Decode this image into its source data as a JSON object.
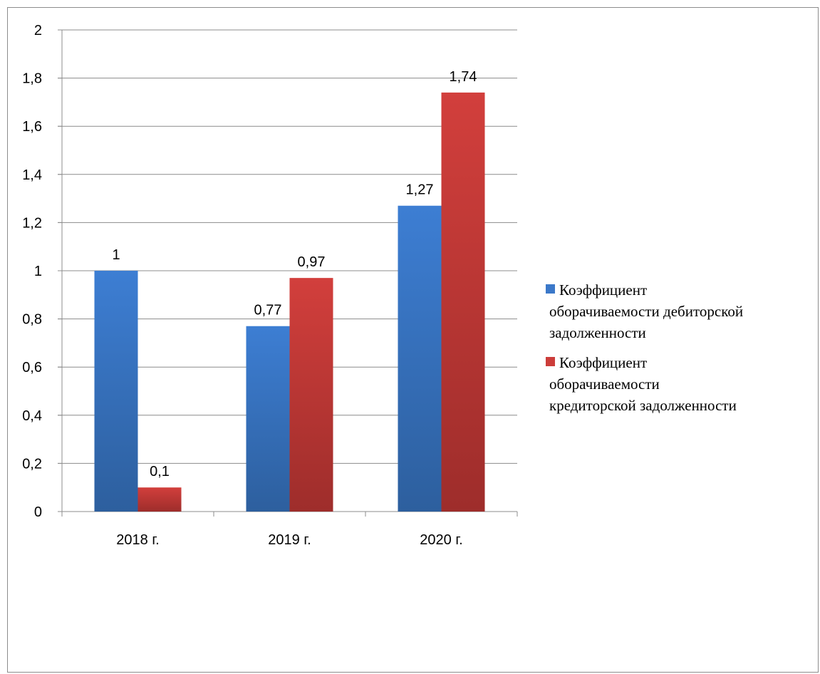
{
  "chart_data": {
    "type": "bar",
    "categories": [
      "2018 г.",
      "2019 г.",
      "2020 г."
    ],
    "series": [
      {
        "name": "Коэффициент оборачиваемости дебиторской задолженности",
        "values": [
          1,
          0.77,
          1.27
        ],
        "labels": [
          "1",
          "0,77",
          "1,27"
        ],
        "color": "#3b78c9"
      },
      {
        "name": "Коэффициент оборачиваемости кредиторской задолженности",
        "values": [
          0.1,
          0.97,
          1.74
        ],
        "labels": [
          "0,1",
          "0,97",
          "1,74"
        ],
        "color": "#cc3d3a"
      }
    ],
    "ylim": [
      0,
      2
    ],
    "yticks": [
      0,
      0.2,
      0.4,
      0.6,
      0.8,
      1,
      1.2,
      1.4,
      1.6,
      1.8,
      2
    ],
    "ytick_labels": [
      "0",
      "0,2",
      "0,4",
      "0,6",
      "0,8",
      "1",
      "1,2",
      "1,4",
      "1,6",
      "1,8",
      "2"
    ],
    "grid": true,
    "legend_position": "right"
  },
  "legend": {
    "items": [
      {
        "line1": "Коэффициент",
        "line2": "оборачиваемости дебиторской",
        "line3": "задолженности"
      },
      {
        "line1": "Коэффициент",
        "line2": "оборачиваемости",
        "line3": "кредиторской задолженности"
      }
    ]
  }
}
